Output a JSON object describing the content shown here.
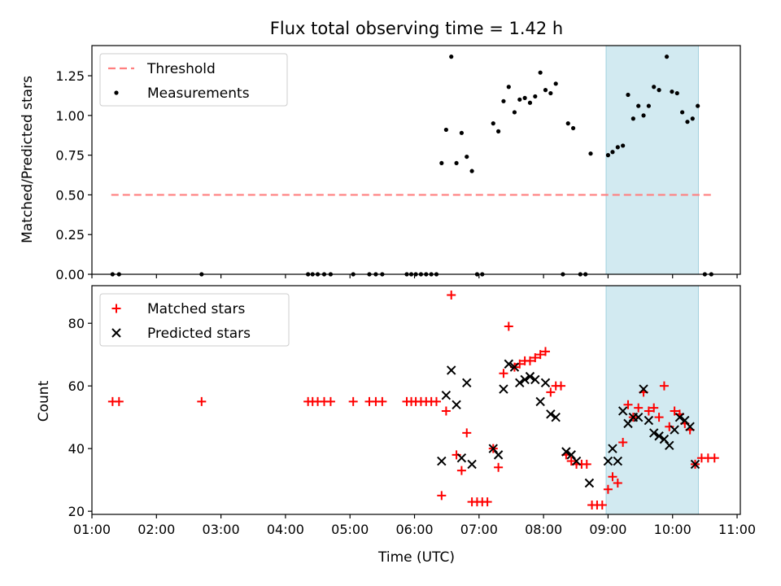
{
  "title": "Flux total observing time = 1.42 h",
  "colors": {
    "threshold": "#ff7f7f",
    "measurement": "#000000",
    "matched": "#ff0000",
    "predicted": "#000000",
    "shade": "#add8e6"
  },
  "chart_data": [
    {
      "type": "scatter",
      "ylabel": "Matched/Predicted stars",
      "xlabel": "",
      "xlim": [
        1.0,
        11.05
      ],
      "ylim": [
        0,
        1.44
      ],
      "yticks": [
        0.0,
        0.25,
        0.5,
        0.75,
        1.0,
        1.25
      ],
      "ytick_labels": [
        "0.00",
        "0.25",
        "0.50",
        "0.75",
        "1.00",
        "1.25"
      ],
      "shaded_span": [
        8.97,
        10.4
      ],
      "legend": {
        "position": "upper-left",
        "entries": [
          "Threshold",
          "Measurements"
        ]
      },
      "threshold": {
        "name": "Threshold",
        "y": 0.5,
        "x": [
          1.3,
          10.6
        ],
        "style": "dashed"
      },
      "series": [
        {
          "name": "Measurements",
          "points": [
            [
              1.32,
              0.0
            ],
            [
              1.42,
              0.0
            ],
            [
              2.7,
              0.0
            ],
            [
              4.35,
              0.0
            ],
            [
              4.42,
              0.0
            ],
            [
              4.5,
              0.0
            ],
            [
              4.6,
              0.0
            ],
            [
              4.7,
              0.0
            ],
            [
              5.05,
              0.0
            ],
            [
              5.3,
              0.0
            ],
            [
              5.4,
              0.0
            ],
            [
              5.5,
              0.0
            ],
            [
              5.88,
              0.0
            ],
            [
              5.95,
              0.0
            ],
            [
              6.02,
              0.0
            ],
            [
              6.1,
              0.0
            ],
            [
              6.18,
              0.0
            ],
            [
              6.26,
              0.0
            ],
            [
              6.34,
              0.0
            ],
            [
              6.42,
              0.7
            ],
            [
              6.49,
              0.91
            ],
            [
              6.57,
              1.37
            ],
            [
              6.65,
              0.7
            ],
            [
              6.73,
              0.89
            ],
            [
              6.81,
              0.74
            ],
            [
              6.89,
              0.65
            ],
            [
              6.97,
              0.0
            ],
            [
              7.05,
              0.0
            ],
            [
              7.22,
              0.95
            ],
            [
              7.3,
              0.9
            ],
            [
              7.38,
              1.09
            ],
            [
              7.46,
              1.18
            ],
            [
              7.55,
              1.02
            ],
            [
              7.63,
              1.1
            ],
            [
              7.71,
              1.11
            ],
            [
              7.79,
              1.08
            ],
            [
              7.87,
              1.12
            ],
            [
              7.95,
              1.27
            ],
            [
              8.03,
              1.16
            ],
            [
              8.11,
              1.14
            ],
            [
              8.19,
              1.2
            ],
            [
              8.3,
              0.0
            ],
            [
              8.38,
              0.95
            ],
            [
              8.46,
              0.92
            ],
            [
              8.57,
              0.0
            ],
            [
              8.65,
              0.0
            ],
            [
              8.73,
              0.76
            ],
            [
              9.0,
              0.75
            ],
            [
              9.07,
              0.77
            ],
            [
              9.15,
              0.8
            ],
            [
              9.23,
              0.81
            ],
            [
              9.31,
              1.13
            ],
            [
              9.39,
              0.98
            ],
            [
              9.47,
              1.06
            ],
            [
              9.55,
              1.0
            ],
            [
              9.63,
              1.06
            ],
            [
              9.71,
              1.18
            ],
            [
              9.79,
              1.16
            ],
            [
              9.91,
              1.37
            ],
            [
              9.99,
              1.15
            ],
            [
              10.07,
              1.14
            ],
            [
              10.15,
              1.02
            ],
            [
              10.23,
              0.96
            ],
            [
              10.31,
              0.98
            ],
            [
              10.39,
              1.06
            ],
            [
              10.5,
              0.0
            ],
            [
              10.6,
              0.0
            ]
          ]
        }
      ]
    },
    {
      "type": "scatter",
      "ylabel": "Count",
      "xlabel": "Time (UTC)",
      "xlim": [
        1.0,
        11.05
      ],
      "ylim": [
        19,
        92
      ],
      "yticks": [
        20,
        40,
        60,
        80
      ],
      "ytick_labels": [
        "20",
        "40",
        "60",
        "80"
      ],
      "xticks": [
        1,
        2,
        3,
        4,
        5,
        6,
        7,
        8,
        9,
        10,
        11
      ],
      "xtick_labels": [
        "01:00",
        "02:00",
        "03:00",
        "04:00",
        "05:00",
        "06:00",
        "07:00",
        "08:00",
        "09:00",
        "10:00",
        "11:00"
      ],
      "shaded_span": [
        8.97,
        10.4
      ],
      "legend": {
        "position": "upper-left",
        "entries": [
          "Matched stars",
          "Predicted stars"
        ]
      },
      "series": [
        {
          "name": "Matched stars",
          "marker": "plus",
          "points": [
            [
              1.32,
              55
            ],
            [
              1.42,
              55
            ],
            [
              2.7,
              55
            ],
            [
              4.35,
              55
            ],
            [
              4.42,
              55
            ],
            [
              4.5,
              55
            ],
            [
              4.6,
              55
            ],
            [
              4.7,
              55
            ],
            [
              5.05,
              55
            ],
            [
              5.3,
              55
            ],
            [
              5.4,
              55
            ],
            [
              5.5,
              55
            ],
            [
              5.88,
              55
            ],
            [
              5.95,
              55
            ],
            [
              6.02,
              55
            ],
            [
              6.1,
              55
            ],
            [
              6.18,
              55
            ],
            [
              6.26,
              55
            ],
            [
              6.34,
              55
            ],
            [
              6.42,
              25
            ],
            [
              6.49,
              52
            ],
            [
              6.57,
              89
            ],
            [
              6.65,
              38
            ],
            [
              6.73,
              33
            ],
            [
              6.81,
              45
            ],
            [
              6.89,
              23
            ],
            [
              6.97,
              23
            ],
            [
              7.05,
              23
            ],
            [
              7.13,
              23
            ],
            [
              7.22,
              40
            ],
            [
              7.3,
              34
            ],
            [
              7.38,
              64
            ],
            [
              7.46,
              79
            ],
            [
              7.55,
              66
            ],
            [
              7.63,
              67
            ],
            [
              7.71,
              68
            ],
            [
              7.79,
              68
            ],
            [
              7.87,
              69
            ],
            [
              7.95,
              70
            ],
            [
              8.03,
              71
            ],
            [
              8.11,
              58
            ],
            [
              8.19,
              60
            ],
            [
              8.27,
              60
            ],
            [
              8.35,
              38
            ],
            [
              8.43,
              36
            ],
            [
              8.51,
              35
            ],
            [
              8.59,
              35
            ],
            [
              8.67,
              35
            ],
            [
              8.75,
              22
            ],
            [
              8.83,
              22
            ],
            [
              8.91,
              22
            ],
            [
              9.0,
              27
            ],
            [
              9.07,
              31
            ],
            [
              9.15,
              29
            ],
            [
              9.23,
              42
            ],
            [
              9.31,
              54
            ],
            [
              9.39,
              50
            ],
            [
              9.47,
              53
            ],
            [
              9.55,
              58
            ],
            [
              9.63,
              52
            ],
            [
              9.71,
              53
            ],
            [
              9.79,
              50
            ],
            [
              9.87,
              60
            ],
            [
              9.95,
              47
            ],
            [
              10.03,
              52
            ],
            [
              10.11,
              51
            ],
            [
              10.19,
              48
            ],
            [
              10.27,
              46
            ],
            [
              10.35,
              35
            ],
            [
              10.45,
              37
            ],
            [
              10.55,
              37
            ],
            [
              10.65,
              37
            ]
          ]
        },
        {
          "name": "Predicted stars",
          "marker": "x",
          "points": [
            [
              6.42,
              36
            ],
            [
              6.49,
              57
            ],
            [
              6.57,
              65
            ],
            [
              6.65,
              54
            ],
            [
              6.73,
              37
            ],
            [
              6.81,
              61
            ],
            [
              6.89,
              35
            ],
            [
              7.22,
              40
            ],
            [
              7.3,
              38
            ],
            [
              7.38,
              59
            ],
            [
              7.46,
              67
            ],
            [
              7.55,
              66
            ],
            [
              7.63,
              61
            ],
            [
              7.71,
              62
            ],
            [
              7.79,
              63
            ],
            [
              7.87,
              62
            ],
            [
              7.95,
              55
            ],
            [
              8.03,
              61
            ],
            [
              8.11,
              51
            ],
            [
              8.19,
              50
            ],
            [
              8.35,
              39
            ],
            [
              8.43,
              38
            ],
            [
              8.51,
              36
            ],
            [
              8.71,
              29
            ],
            [
              9.0,
              36
            ],
            [
              9.07,
              40
            ],
            [
              9.15,
              36
            ],
            [
              9.23,
              52
            ],
            [
              9.31,
              48
            ],
            [
              9.39,
              50
            ],
            [
              9.47,
              50
            ],
            [
              9.55,
              59
            ],
            [
              9.63,
              49
            ],
            [
              9.71,
              45
            ],
            [
              9.79,
              44
            ],
            [
              9.87,
              43
            ],
            [
              9.95,
              41
            ],
            [
              10.03,
              46
            ],
            [
              10.11,
              50
            ],
            [
              10.19,
              49
            ],
            [
              10.27,
              47
            ],
            [
              10.35,
              35
            ]
          ]
        }
      ]
    }
  ]
}
